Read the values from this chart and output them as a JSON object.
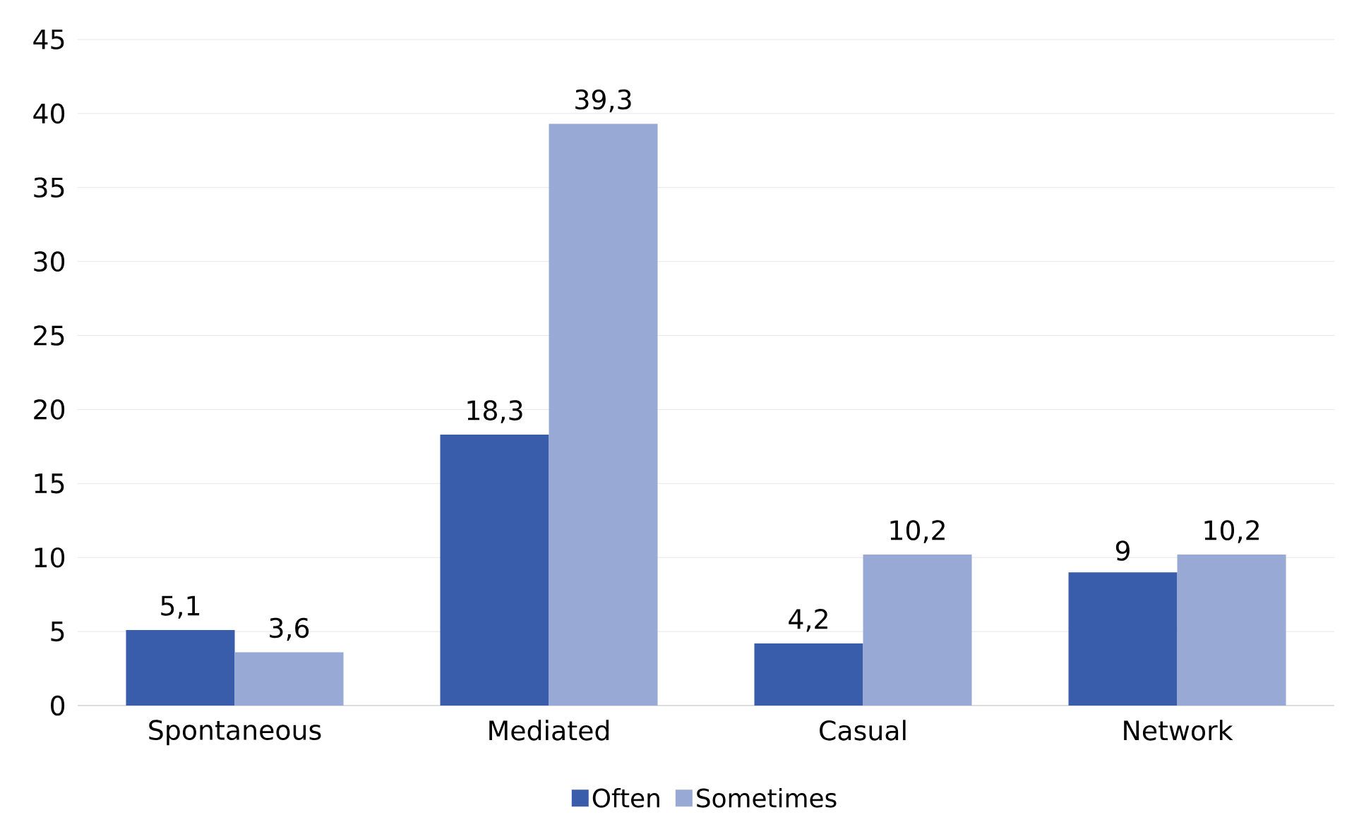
{
  "chart_data": {
    "type": "bar",
    "categories": [
      "Spontaneous",
      "Mediated",
      "Casual",
      "Network"
    ],
    "series": [
      {
        "name": "Often",
        "color": "#3a5dab",
        "values": [
          5.1,
          18.3,
          4.2,
          9
        ],
        "value_labels": [
          "5,1",
          "18,3",
          "4,2",
          "9"
        ]
      },
      {
        "name": "Sometimes",
        "color": "#98a9d6",
        "values": [
          3.6,
          39.3,
          10.2,
          10.2
        ],
        "value_labels": [
          "3,6",
          "39,3",
          "10,2",
          "10,2"
        ]
      }
    ],
    "ylim": [
      0,
      45
    ],
    "yticks": [
      0,
      5,
      10,
      15,
      20,
      25,
      30,
      35,
      40,
      45
    ],
    "grid": "y",
    "legend": "bottom"
  }
}
